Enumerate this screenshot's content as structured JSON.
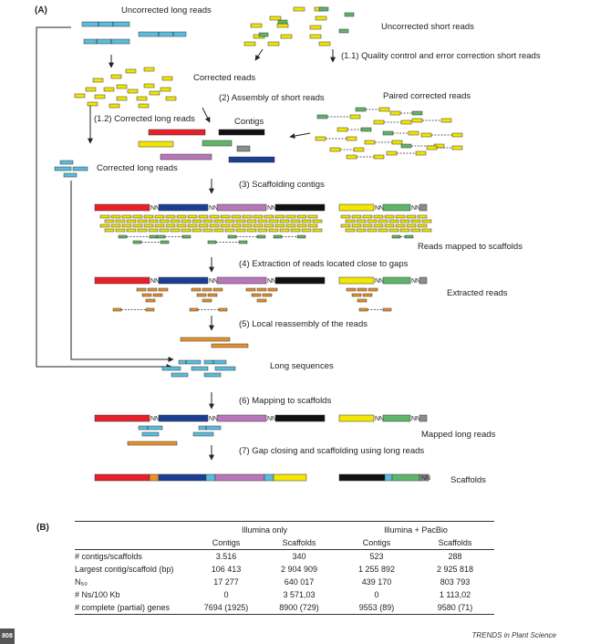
{
  "panel_a": {
    "label": "(A)",
    "uncorrected_long": "Uncorrected long reads",
    "uncorrected_short": "Uncorrected short reads",
    "step_1_1": "(1.1) Quality control and error correction short reads",
    "corrected_reads": "Corrected reads",
    "step_2": "(2) Assembly of short reads",
    "paired_corrected": "Paired corrected reads",
    "step_1_2": "(1.2) Corrected long reads",
    "contigs": "Contigs",
    "corrected_long": "Corrected long  reads",
    "step_3": "(3) Scaffolding contigs",
    "reads_mapped": "Reads mapped to scaffolds",
    "step_4": "(4) Extraction of reads located close to gaps",
    "extracted_reads": "Extracted reads",
    "step_5": "(5) Local reassembly of the reads",
    "long_sequences": "Long sequences",
    "step_6": "(6) Mapping to scaffolds",
    "mapped_long": "Mapped long reads",
    "step_7": "(7) Gap closing and scaffolding using long reads",
    "scaffolds": "Scaffolds",
    "nn": "NN"
  },
  "panel_b": {
    "label": "(B)",
    "group_headers": [
      "Illumina only",
      "Illumina + PacBio"
    ],
    "columns": [
      "Contigs",
      "Scaffolds",
      "Contigs",
      "Scaffolds"
    ],
    "rows": [
      {
        "metric": "# contigs/scaffolds",
        "values": [
          "3.516",
          "340",
          "523",
          "288"
        ]
      },
      {
        "metric": "Largest contig/scaffold (bp)",
        "values": [
          "106 413",
          "2 904 909",
          "1 255 892",
          "2 925 818"
        ]
      },
      {
        "metric": "N₅₀",
        "values": [
          "17 277",
          "640 017",
          "439 170",
          "803 793"
        ]
      },
      {
        "metric": "# Ns/100 Kb",
        "values": [
          "0",
          "3 571,03",
          "0",
          "1 113,02"
        ]
      },
      {
        "metric": "# complete (partial) genes",
        "values": [
          "7694 (1925)",
          "8900 (729)",
          "9553 (89)",
          "9580 (71)"
        ]
      }
    ]
  },
  "footer": {
    "page_badge": "808",
    "journal": "TRENDS in Plant Science"
  },
  "colors": {
    "cyan": "#5bbcdc",
    "yellow": "#f3e600",
    "green": "#5fb56a",
    "red": "#e8202a",
    "black": "#111111",
    "purple": "#b877b8",
    "navy": "#1c3f94",
    "grey": "#8c8c8c",
    "orange": "#e8922a"
  }
}
